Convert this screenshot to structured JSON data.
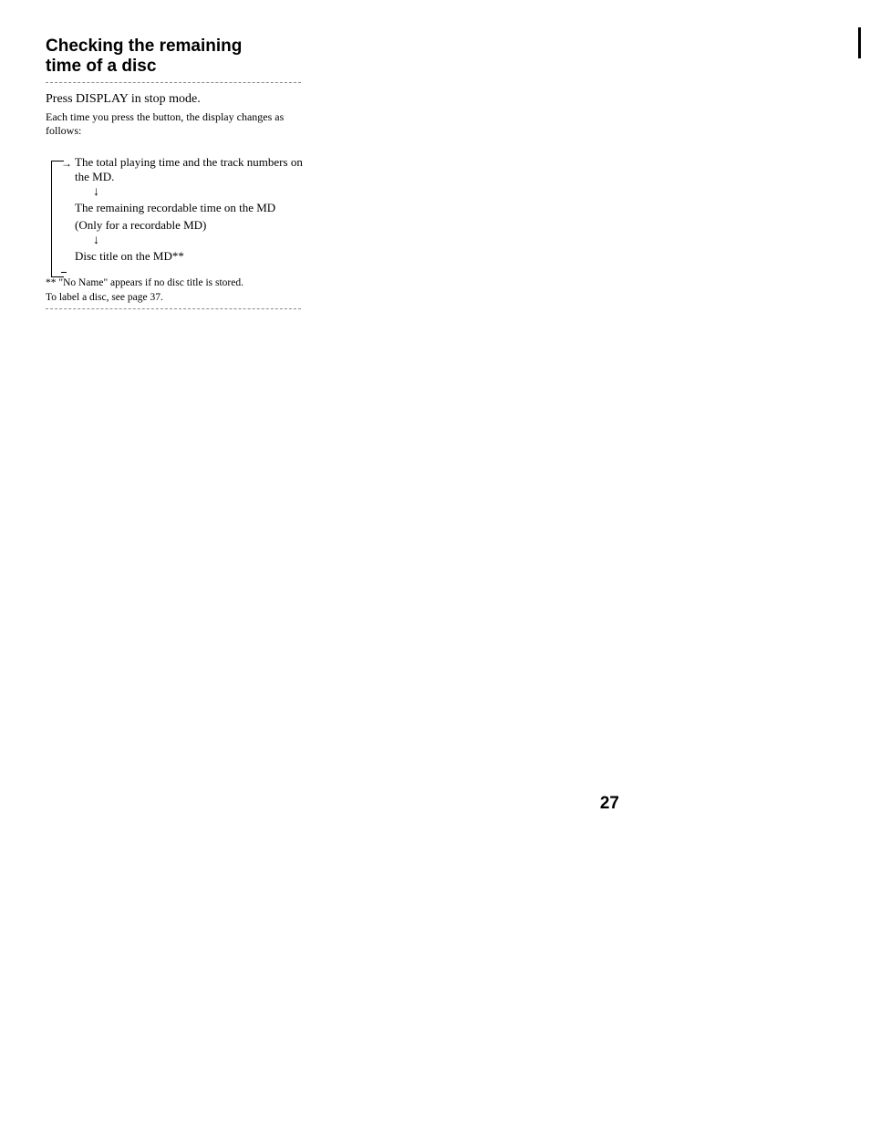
{
  "heading": {
    "line1": "Checking the remaining",
    "line2": "time of a disc"
  },
  "intro": {
    "main": "Press DISPLAY in stop mode.",
    "sub": "Each time you press the button, the display changes as follows:"
  },
  "flow": {
    "item1": "The total playing time and the track numbers on the MD.",
    "item2a": "The remaining recordable time on the MD",
    "item2b": "(Only for a recordable MD)",
    "item3": "Disc title on the MD**"
  },
  "footnote": {
    "line1": "** \"No Name\" appears if no disc title is stored.",
    "line2": "To label a disc, see page 37."
  },
  "arrows": {
    "down": "↓",
    "right": "→"
  },
  "page_number": "27"
}
